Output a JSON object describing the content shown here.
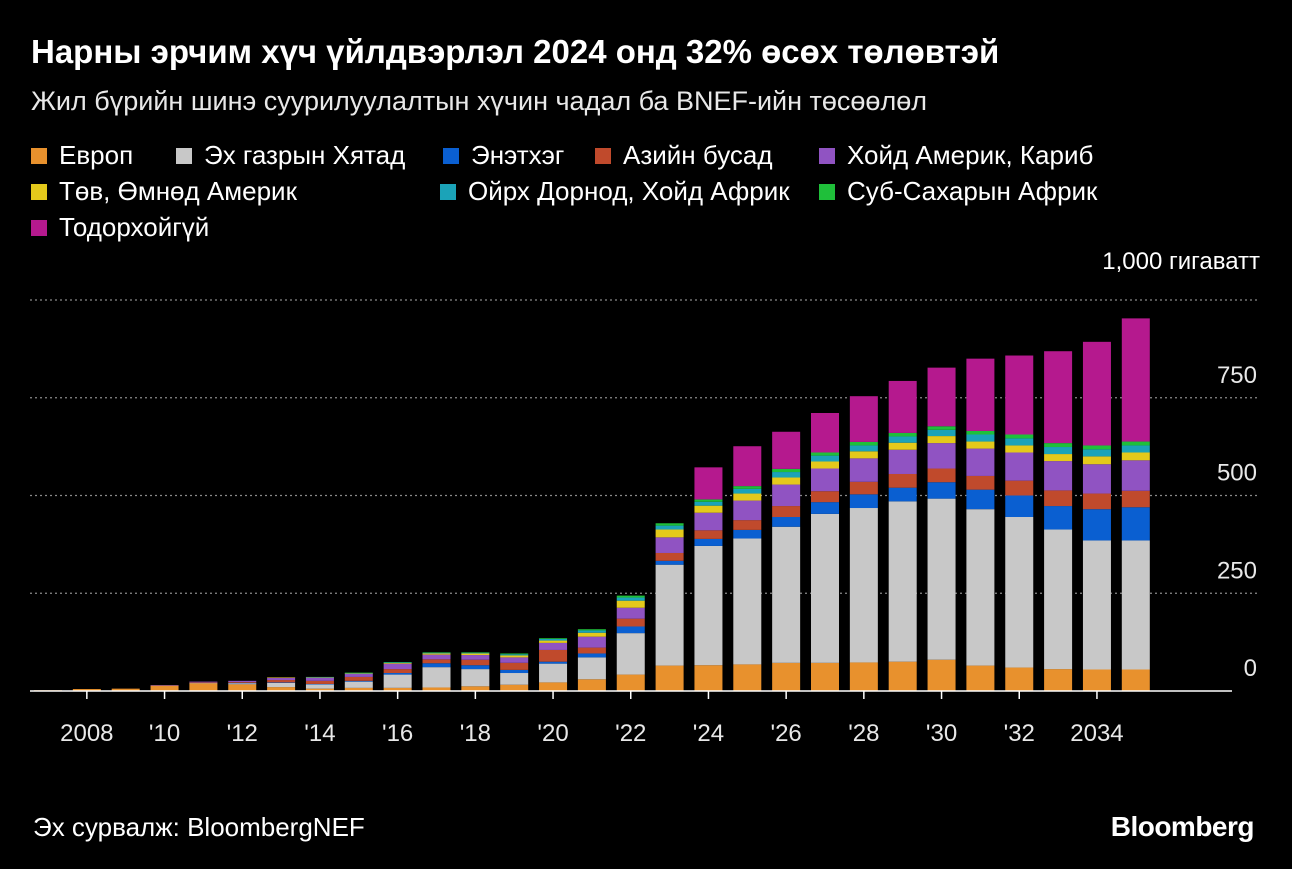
{
  "title": "Нарны эрчим хүч үйлдвэрлэл 2024 онд 32% өсөх төлөвтэй",
  "subtitle": "Жил бүрийн шинэ суурилуулалтын хүчин чадал ба BNEF-ийн төсөөлөл",
  "source": "Эх сурвалж: BloombergNEF",
  "brand": "Bloomberg",
  "chart_data": {
    "type": "bar",
    "stacked": true,
    "title": "Нарны эрчим хүч үйлдвэрлэл 2024 онд 32% өсөх төлөвтэй",
    "ylabel": "гигаватт",
    "unit_label": "1,000 гигаватт",
    "ylim": [
      0,
      1000
    ],
    "yticks": [
      0,
      250,
      500,
      750
    ],
    "ytick_labels": [
      "0",
      "250",
      "500",
      "750"
    ],
    "grid": true,
    "categories": [
      2007,
      2008,
      2009,
      2010,
      2011,
      2012,
      2013,
      2014,
      2015,
      2016,
      2017,
      2018,
      2019,
      2020,
      2021,
      2022,
      2023,
      2024,
      2025,
      2026,
      2027,
      2028,
      2029,
      2030,
      2031,
      2032,
      2033,
      2034,
      2035
    ],
    "xtick_labels": [
      {
        "year": 2008,
        "label": "2008"
      },
      {
        "year": 2010,
        "label": "'10"
      },
      {
        "year": 2012,
        "label": "'12"
      },
      {
        "year": 2014,
        "label": "'14"
      },
      {
        "year": 2016,
        "label": "'16"
      },
      {
        "year": 2018,
        "label": "'18"
      },
      {
        "year": 2020,
        "label": "'20"
      },
      {
        "year": 2022,
        "label": "'22"
      },
      {
        "year": 2024,
        "label": "'24"
      },
      {
        "year": 2026,
        "label": "'26"
      },
      {
        "year": 2028,
        "label": "'28"
      },
      {
        "year": 2030,
        "label": "'30"
      },
      {
        "year": 2032,
        "label": "'32"
      },
      {
        "year": 2034,
        "label": "2034"
      }
    ],
    "series": [
      {
        "name": "Европ",
        "color": "#e8912d",
        "values": [
          2,
          5,
          6,
          14,
          20,
          17,
          10,
          6,
          8,
          8,
          9,
          12,
          16,
          22,
          30,
          42,
          65,
          66,
          68,
          72,
          72,
          73,
          75,
          80,
          65,
          60,
          56,
          55,
          55
        ]
      },
      {
        "name": "Эх газрын Хятад",
        "color": "#c8c8c8",
        "values": [
          0,
          0,
          0,
          0,
          1,
          3,
          11,
          11,
          16,
          34,
          52,
          44,
          30,
          48,
          56,
          106,
          258,
          305,
          322,
          348,
          381,
          395,
          410,
          412,
          400,
          385,
          357,
          330,
          330
        ]
      },
      {
        "name": "Энэтхэг",
        "color": "#0a5fd1",
        "values": [
          0,
          0,
          0,
          0,
          0,
          1,
          1,
          1,
          2,
          4,
          10,
          10,
          8,
          5,
          10,
          17,
          10,
          18,
          22,
          25,
          30,
          35,
          35,
          42,
          50,
          55,
          60,
          80,
          85
        ]
      },
      {
        "name": "Азийн бусад",
        "color": "#c04a2c",
        "values": [
          0,
          0,
          0,
          0,
          1,
          2,
          6,
          8,
          10,
          10,
          10,
          14,
          18,
          30,
          15,
          20,
          20,
          22,
          25,
          28,
          28,
          32,
          35,
          35,
          35,
          38,
          40,
          40,
          42
        ]
      },
      {
        "name": "Хойд Америк, Кариб",
        "color": "#9053c2",
        "values": [
          0,
          0,
          0,
          1,
          2,
          3,
          6,
          8,
          8,
          14,
          12,
          12,
          14,
          18,
          28,
          28,
          40,
          45,
          50,
          55,
          58,
          60,
          62,
          65,
          70,
          72,
          75,
          75,
          78
        ]
      },
      {
        "name": "Төв, Өмнөд Америк",
        "color": "#e4c91b",
        "values": [
          0,
          0,
          0,
          0,
          0,
          0,
          1,
          1,
          1,
          2,
          3,
          4,
          5,
          6,
          10,
          18,
          20,
          18,
          18,
          18,
          18,
          18,
          18,
          18,
          18,
          18,
          18,
          20,
          20
        ]
      },
      {
        "name": "Ойрх Дорнод, Хойд Африк",
        "color": "#1ba3b8",
        "values": [
          0,
          0,
          0,
          0,
          0,
          0,
          0,
          1,
          1,
          1,
          2,
          2,
          3,
          4,
          6,
          8,
          10,
          10,
          12,
          14,
          15,
          15,
          16,
          16,
          18,
          18,
          18,
          18,
          18
        ]
      },
      {
        "name": "Суб-Сахарын Африк",
        "color": "#1fbf3a",
        "values": [
          0,
          0,
          0,
          0,
          0,
          0,
          0,
          0,
          1,
          1,
          1,
          1,
          2,
          2,
          3,
          5,
          6,
          6,
          7,
          8,
          8,
          9,
          9,
          9,
          9,
          10,
          10,
          10,
          10
        ]
      },
      {
        "name": "Тодорхойгүй",
        "color": "#b5198e",
        "values": [
          0,
          0,
          0,
          0,
          0,
          0,
          0,
          0,
          0,
          0,
          0,
          0,
          0,
          0,
          0,
          0,
          0,
          82,
          102,
          95,
          101,
          117,
          133,
          150,
          185,
          202,
          235,
          265,
          315
        ]
      }
    ]
  }
}
